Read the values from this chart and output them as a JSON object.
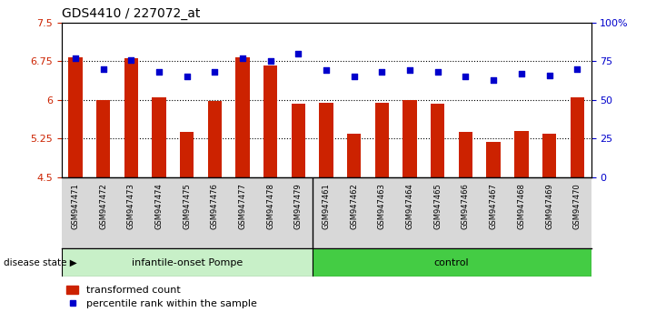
{
  "title": "GDS4410 / 227072_at",
  "samples": [
    "GSM947471",
    "GSM947472",
    "GSM947473",
    "GSM947474",
    "GSM947475",
    "GSM947476",
    "GSM947477",
    "GSM947478",
    "GSM947479",
    "GSM947461",
    "GSM947462",
    "GSM947463",
    "GSM947464",
    "GSM947465",
    "GSM947466",
    "GSM947467",
    "GSM947468",
    "GSM947469",
    "GSM947470"
  ],
  "bar_values": [
    6.82,
    6.0,
    6.8,
    6.04,
    5.38,
    5.97,
    6.83,
    6.67,
    5.93,
    5.95,
    5.35,
    5.95,
    6.0,
    5.93,
    5.37,
    5.19,
    5.4,
    5.35,
    6.04
  ],
  "dot_values": [
    77,
    70,
    76,
    68,
    65,
    68,
    77,
    75,
    80,
    69,
    65,
    68,
    69,
    68,
    65,
    63,
    67,
    66,
    70
  ],
  "groups": [
    {
      "label": "infantile-onset Pompe",
      "start": 0,
      "end": 9,
      "color": "#c8f0c8"
    },
    {
      "label": "control",
      "start": 9,
      "end": 19,
      "color": "#44cc44"
    }
  ],
  "ylim_left": [
    4.5,
    7.5
  ],
  "ylim_right": [
    0,
    100
  ],
  "yticks_left": [
    4.5,
    5.25,
    6.0,
    6.75,
    7.5
  ],
  "yticks_right": [
    0,
    25,
    50,
    75,
    100
  ],
  "ytick_labels_left": [
    "4.5",
    "5.25",
    "6",
    "6.75",
    "7.5"
  ],
  "ytick_labels_right": [
    "0",
    "25",
    "50",
    "75",
    "100%"
  ],
  "hlines": [
    5.25,
    6.0,
    6.75
  ],
  "bar_color": "#CC2200",
  "dot_color": "#0000CC",
  "bar_width": 0.5,
  "disease_state_label": "disease state",
  "legend_bar_label": "transformed count",
  "legend_dot_label": "percentile rank within the sample",
  "group_separator": 9,
  "tick_bg_color": "#d8d8d8"
}
